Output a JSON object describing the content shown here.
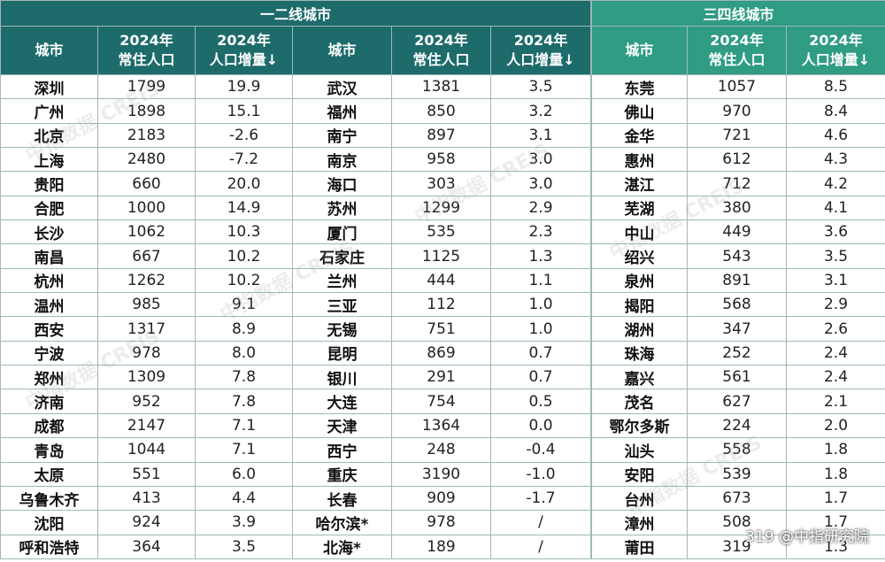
{
  "chart_data": {
    "type": "table",
    "groups": [
      {
        "title": "一二线城市",
        "columns": [
          "城市",
          "2024年 常住人口",
          "2024年 人口增量↓"
        ],
        "rows": [
          [
            "深圳",
            "1799",
            "19.9"
          ],
          [
            "广州",
            "1898",
            "15.1"
          ],
          [
            "北京",
            "2183",
            "-2.6"
          ],
          [
            "上海",
            "2480",
            "-7.2"
          ],
          [
            "贵阳",
            "660",
            "20.0"
          ],
          [
            "合肥",
            "1000",
            "14.9"
          ],
          [
            "长沙",
            "1062",
            "10.3"
          ],
          [
            "南昌",
            "667",
            "10.2"
          ],
          [
            "杭州",
            "1262",
            "10.2"
          ],
          [
            "温州",
            "985",
            "9.1"
          ],
          [
            "西安",
            "1317",
            "8.9"
          ],
          [
            "宁波",
            "978",
            "8.0"
          ],
          [
            "郑州",
            "1309",
            "7.8"
          ],
          [
            "济南",
            "952",
            "7.8"
          ],
          [
            "成都",
            "2147",
            "7.1"
          ],
          [
            "青岛",
            "1044",
            "7.1"
          ],
          [
            "太原",
            "551",
            "6.0"
          ],
          [
            "乌鲁木齐",
            "413",
            "4.4"
          ],
          [
            "沈阳",
            "924",
            "3.9"
          ],
          [
            "呼和浩特",
            "364",
            "3.5"
          ]
        ],
        "rows2": [
          [
            "武汉",
            "1381",
            "3.5"
          ],
          [
            "福州",
            "850",
            "3.2"
          ],
          [
            "南宁",
            "897",
            "3.1"
          ],
          [
            "南京",
            "958",
            "3.0"
          ],
          [
            "海口",
            "303",
            "3.0"
          ],
          [
            "苏州",
            "1299",
            "2.9"
          ],
          [
            "厦门",
            "535",
            "2.3"
          ],
          [
            "石家庄",
            "1125",
            "1.3"
          ],
          [
            "兰州",
            "444",
            "1.1"
          ],
          [
            "三亚",
            "112",
            "1.0"
          ],
          [
            "无锡",
            "751",
            "1.0"
          ],
          [
            "昆明",
            "869",
            "0.7"
          ],
          [
            "银川",
            "291",
            "0.7"
          ],
          [
            "大连",
            "754",
            "0.5"
          ],
          [
            "天津",
            "1364",
            "0.0"
          ],
          [
            "西宁",
            "248",
            "-0.4"
          ],
          [
            "重庆",
            "3190",
            "-1.0"
          ],
          [
            "长春",
            "909",
            "-1.7"
          ],
          [
            "哈尔滨*",
            "978",
            "/"
          ],
          [
            "北海*",
            "189",
            "/"
          ]
        ]
      },
      {
        "title": "三四线城市",
        "columns": [
          "城市",
          "2024年 常住人口",
          "2024年 人口增量↓"
        ],
        "rows": [
          [
            "东莞",
            "1057",
            "8.5"
          ],
          [
            "佛山",
            "970",
            "8.4"
          ],
          [
            "金华",
            "721",
            "4.6"
          ],
          [
            "惠州",
            "612",
            "4.3"
          ],
          [
            "湛江",
            "712",
            "4.2"
          ],
          [
            "芜湖",
            "380",
            "4.1"
          ],
          [
            "中山",
            "449",
            "3.6"
          ],
          [
            "绍兴",
            "543",
            "3.5"
          ],
          [
            "泉州",
            "891",
            "3.1"
          ],
          [
            "揭阳",
            "568",
            "2.9"
          ],
          [
            "湖州",
            "347",
            "2.6"
          ],
          [
            "珠海",
            "252",
            "2.4"
          ],
          [
            "嘉兴",
            "561",
            "2.4"
          ],
          [
            "茂名",
            "627",
            "2.1"
          ],
          [
            "鄂尔多斯",
            "224",
            "2.0"
          ],
          [
            "汕头",
            "558",
            "1.8"
          ],
          [
            "安阳",
            "539",
            "1.8"
          ],
          [
            "台州",
            "673",
            "1.7"
          ],
          [
            "漳州",
            "508",
            "1.7"
          ],
          [
            "莆田",
            "319",
            "1.3"
          ]
        ]
      }
    ]
  },
  "header": {
    "city": "城市",
    "pop_l1": "2024年",
    "pop_l2": "常住人口",
    "inc_l1": "2024年",
    "inc_l2": "人口增量↓"
  },
  "watermark": "中指数据 CREIS",
  "credit": "319 @中指研究院",
  "colors": {
    "primary_header": "#1e6b6b",
    "secondary_header": "#2f9c83"
  }
}
